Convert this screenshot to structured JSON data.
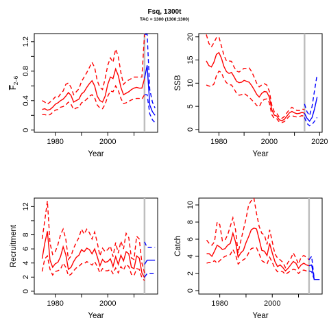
{
  "title": "Fsq, 1300t",
  "subtitle": "TAC = 1300 (1300;1300)",
  "colors": {
    "history": "#ff0000",
    "forecast": "#0000ff",
    "marker": "#bebebe",
    "axis": "#000000"
  },
  "chart_data": [
    {
      "type": "line",
      "id": "fbar",
      "ylabel": "F̄ 2–6",
      "ylabel_main": "F",
      "ylabel_sub": "2–6",
      "xlabel": "Year",
      "xlim": [
        1972,
        2019
      ],
      "ylim": [
        -0.03,
        1.31
      ],
      "xticks": [
        1980,
        2000
      ],
      "xticks_minor": [
        1990,
        2010
      ],
      "yticks": [
        0,
        0.4,
        0.8,
        1.2
      ],
      "yticks_minor": [
        0.2,
        0.6,
        1.0
      ],
      "marker_year": 2014,
      "history": {
        "x": [
          1975,
          1976,
          1977,
          1978,
          1979,
          1980,
          1981,
          1982,
          1983,
          1984,
          1985,
          1986,
          1987,
          1988,
          1989,
          1990,
          1991,
          1992,
          1993,
          1994,
          1995,
          1996,
          1997,
          1998,
          1999,
          2000,
          2001,
          2002,
          2003,
          2004,
          2005,
          2006,
          2007,
          2008,
          2009,
          2010,
          2011,
          2012,
          2013,
          2014
        ],
        "median": [
          0.28,
          0.29,
          0.27,
          0.28,
          0.31,
          0.35,
          0.37,
          0.4,
          0.42,
          0.46,
          0.51,
          0.47,
          0.38,
          0.4,
          0.42,
          0.49,
          0.52,
          0.58,
          0.63,
          0.67,
          0.6,
          0.46,
          0.4,
          0.38,
          0.46,
          0.62,
          0.72,
          0.7,
          0.83,
          0.74,
          0.58,
          0.48,
          0.5,
          0.52,
          0.55,
          0.57,
          0.58,
          0.57,
          0.57,
          0.7
        ],
        "upper": [
          0.4,
          0.38,
          0.35,
          0.38,
          0.41,
          0.45,
          0.44,
          0.49,
          0.53,
          0.62,
          0.64,
          0.58,
          0.48,
          0.52,
          0.56,
          0.66,
          0.72,
          0.78,
          0.85,
          0.92,
          0.85,
          0.67,
          0.58,
          0.55,
          0.7,
          0.88,
          0.98,
          0.92,
          1.1,
          1.0,
          0.78,
          0.62,
          0.66,
          0.68,
          0.7,
          0.72,
          0.72,
          0.72,
          0.72,
          1.3
        ],
        "lower": [
          0.21,
          0.21,
          0.2,
          0.21,
          0.24,
          0.27,
          0.28,
          0.31,
          0.32,
          0.34,
          0.38,
          0.35,
          0.28,
          0.3,
          0.31,
          0.37,
          0.39,
          0.42,
          0.46,
          0.48,
          0.44,
          0.34,
          0.3,
          0.29,
          0.35,
          0.46,
          0.53,
          0.52,
          0.6,
          0.54,
          0.43,
          0.36,
          0.37,
          0.39,
          0.41,
          0.42,
          0.43,
          0.43,
          0.42,
          0.48
        ]
      },
      "forecast": {
        "x": [
          2014,
          2015,
          2016,
          2017,
          2018
        ],
        "median": [
          0.7,
          0.88,
          0.34,
          0.25,
          0.2
        ],
        "upper": [
          1.3,
          1.3,
          0.55,
          0.38,
          0.3
        ],
        "lower": [
          0.48,
          0.48,
          0.22,
          0.14,
          0.1
        ]
      }
    },
    {
      "type": "line",
      "id": "ssb",
      "ylabel": "SSB",
      "xlabel": "Year",
      "xlim": [
        1972,
        2021
      ],
      "ylim": [
        -0.6,
        20.7
      ],
      "xticks": [
        1980,
        2000,
        2020
      ],
      "xticks_minor": [
        1990,
        2010
      ],
      "yticks": [
        0,
        5,
        10,
        15,
        20
      ],
      "yticks_minor": [],
      "marker_year": 2014,
      "history": {
        "x": [
          1975,
          1976,
          1977,
          1978,
          1979,
          1980,
          1981,
          1982,
          1983,
          1984,
          1985,
          1986,
          1987,
          1988,
          1989,
          1990,
          1991,
          1992,
          1993,
          1994,
          1995,
          1996,
          1997,
          1998,
          1999,
          2000,
          2001,
          2002,
          2003,
          2004,
          2005,
          2006,
          2007,
          2008,
          2009,
          2010,
          2011,
          2012,
          2013,
          2014
        ],
        "median": [
          14.8,
          13.8,
          13.5,
          14.5,
          16.2,
          16.6,
          15.4,
          13.6,
          12.5,
          12.1,
          12.3,
          11.4,
          10.4,
          10.1,
          10.2,
          10.6,
          10.4,
          10.2,
          9.5,
          8.6,
          7.6,
          7.0,
          7.8,
          8.2,
          8.1,
          7.0,
          4.3,
          3.1,
          2.9,
          2.1,
          1.9,
          2.2,
          2.9,
          3.6,
          3.9,
          3.6,
          3.4,
          3.5,
          3.7,
          3.5
        ],
        "upper": [
          20.5,
          18.6,
          17.8,
          18.7,
          19.8,
          20.0,
          18.0,
          16.0,
          14.8,
          14.8,
          14.7,
          13.5,
          12.6,
          12.4,
          12.8,
          13.2,
          13.2,
          13.3,
          12.5,
          11.3,
          10.0,
          9.2,
          9.6,
          9.9,
          9.6,
          8.3,
          5.3,
          3.8,
          3.5,
          2.6,
          2.4,
          2.8,
          3.6,
          4.3,
          4.8,
          4.4,
          4.1,
          4.1,
          4.4,
          4.3
        ],
        "lower": [
          9.6,
          9.4,
          9.3,
          9.8,
          11.6,
          12.6,
          12.3,
          10.9,
          10.1,
          9.7,
          9.6,
          8.8,
          7.8,
          7.4,
          7.5,
          7.8,
          7.4,
          7.0,
          6.4,
          5.9,
          5.2,
          4.9,
          6.0,
          6.5,
          6.6,
          5.8,
          3.2,
          2.4,
          2.3,
          1.6,
          1.5,
          1.7,
          2.3,
          2.9,
          3.0,
          2.8,
          2.7,
          2.8,
          3.0,
          2.8
        ]
      },
      "forecast": {
        "x": [
          2014,
          2015,
          2016,
          2017,
          2018,
          2019
        ],
        "median": [
          3.5,
          2.4,
          1.8,
          2.6,
          4.5,
          7.0
        ],
        "upper": [
          5.5,
          3.8,
          3.0,
          5.0,
          8.5,
          11.8
        ],
        "lower": [
          2.6,
          1.3,
          0.8,
          1.1,
          1.8,
          2.6
        ]
      }
    },
    {
      "type": "line",
      "id": "recruitment",
      "ylabel": "Recruitment",
      "xlabel": "Year",
      "xlim": [
        1972,
        2019
      ],
      "ylim": [
        -0.4,
        13.2
      ],
      "xticks": [
        1980,
        2000
      ],
      "xticks_minor": [
        1990,
        2010
      ],
      "yticks": [
        0,
        2,
        4,
        6,
        8,
        12
      ],
      "yticks_minor": [
        10
      ],
      "marker_year": 2014,
      "history": {
        "x": [
          1975,
          1976,
          1977,
          1978,
          1979,
          1980,
          1981,
          1982,
          1983,
          1984,
          1985,
          1986,
          1987,
          1988,
          1989,
          1990,
          1991,
          1992,
          1993,
          1994,
          1995,
          1996,
          1997,
          1998,
          1999,
          2000,
          2001,
          2002,
          2003,
          2004,
          2005,
          2006,
          2007,
          2008,
          2009,
          2010,
          2011,
          2012,
          2013,
          2014
        ],
        "median": [
          4.6,
          6.8,
          8.5,
          4.4,
          3.4,
          3.9,
          4.1,
          4.9,
          6.3,
          5.2,
          3.1,
          3.4,
          4.2,
          4.8,
          5.1,
          5.9,
          5.6,
          6.1,
          5.9,
          5.3,
          6.0,
          4.9,
          3.6,
          4.5,
          4.1,
          4.2,
          4.6,
          3.5,
          4.9,
          3.8,
          5.1,
          4.3,
          5.6,
          5.3,
          3.4,
          3.2,
          5.0,
          4.7,
          2.6,
          1.9
        ],
        "upper": [
          7.4,
          10.0,
          12.8,
          6.8,
          5.2,
          5.6,
          6.6,
          8.0,
          8.8,
          7.4,
          4.5,
          5.0,
          6.1,
          6.9,
          7.6,
          8.8,
          8.1,
          8.8,
          8.3,
          7.4,
          8.4,
          6.9,
          5.0,
          6.1,
          5.6,
          5.9,
          6.4,
          4.9,
          6.9,
          5.4,
          7.1,
          6.0,
          8.2,
          7.6,
          4.7,
          4.5,
          7.8,
          7.4,
          4.0,
          2.6
        ],
        "lower": [
          2.8,
          4.6,
          5.0,
          3.1,
          2.3,
          2.8,
          2.9,
          3.1,
          4.0,
          3.4,
          2.2,
          2.4,
          2.9,
          3.3,
          3.5,
          3.9,
          3.9,
          4.2,
          4.0,
          3.7,
          4.2,
          3.5,
          2.6,
          3.2,
          2.9,
          2.9,
          3.1,
          2.5,
          3.3,
          2.6,
          3.5,
          3.0,
          3.8,
          3.5,
          2.4,
          2.2,
          3.2,
          3.1,
          1.9,
          1.5
        ]
      },
      "forecast": {
        "x": [
          2014,
          2015,
          2016,
          2017,
          2018
        ],
        "median": [
          3.8,
          4.4,
          4.4,
          4.4,
          4.4
        ],
        "upper": [
          7.0,
          6.2,
          6.2,
          6.2,
          6.2
        ],
        "lower": [
          2.0,
          2.5,
          2.5,
          2.5,
          2.5
        ]
      }
    },
    {
      "type": "line",
      "id": "catch",
      "ylabel": "Catch",
      "xlabel": "Year",
      "xlim": [
        1972,
        2019
      ],
      "ylim": [
        -0.4,
        10.8
      ],
      "xticks": [
        1980,
        2000
      ],
      "xticks_minor": [
        1990,
        2010
      ],
      "yticks": [
        0,
        2,
        4,
        6,
        8,
        10
      ],
      "yticks_minor": [],
      "marker_year": 2014,
      "history": {
        "x": [
          1975,
          1976,
          1977,
          1978,
          1979,
          1980,
          1981,
          1982,
          1983,
          1984,
          1985,
          1986,
          1987,
          1988,
          1989,
          1990,
          1991,
          1992,
          1993,
          1994,
          1995,
          1996,
          1997,
          1998,
          1999,
          2000,
          2001,
          2002,
          2003,
          2004,
          2005,
          2006,
          2007,
          2008,
          2009,
          2010,
          2011,
          2012,
          2013,
          2014
        ],
        "median": [
          4.3,
          4.3,
          4.0,
          4.6,
          5.3,
          5.1,
          4.8,
          4.9,
          5.3,
          5.5,
          6.7,
          5.7,
          3.9,
          4.4,
          4.7,
          5.6,
          6.3,
          7.1,
          7.3,
          7.2,
          6.0,
          4.7,
          4.6,
          4.1,
          5.5,
          4.4,
          3.4,
          2.8,
          3.0,
          2.7,
          2.3,
          2.6,
          3.0,
          3.4,
          3.2,
          2.6,
          3.0,
          3.2,
          3.0,
          2.9
        ],
        "upper": [
          5.9,
          5.5,
          5.3,
          5.7,
          8.0,
          7.7,
          5.8,
          5.9,
          6.5,
          7.5,
          8.5,
          7.1,
          4.4,
          5.8,
          7.1,
          8.4,
          10.0,
          10.5,
          10.8,
          9.0,
          7.5,
          6.7,
          6.5,
          5.4,
          7.1,
          5.7,
          4.3,
          3.8,
          3.6,
          3.3,
          2.7,
          3.3,
          3.7,
          4.4,
          3.8,
          3.1,
          3.9,
          4.1,
          3.9,
          3.6
        ],
        "lower": [
          3.2,
          3.3,
          3.3,
          3.5,
          3.2,
          3.5,
          3.8,
          4.0,
          4.1,
          4.2,
          4.8,
          4.2,
          3.1,
          3.4,
          3.6,
          3.8,
          4.4,
          4.9,
          5.0,
          5.0,
          4.3,
          3.5,
          3.3,
          3.1,
          3.9,
          3.3,
          2.6,
          2.2,
          2.3,
          2.2,
          1.9,
          2.1,
          2.3,
          2.5,
          2.4,
          2.0,
          2.3,
          2.4,
          2.3,
          2.3
        ]
      },
      "forecast": {
        "x": [
          2014,
          2015,
          2016,
          2017,
          2018
        ],
        "median": [
          2.9,
          3.0,
          1.3,
          1.3,
          1.3
        ],
        "upper": [
          3.6,
          4.0,
          1.3,
          1.3,
          1.3
        ],
        "lower": [
          2.3,
          2.2,
          1.3,
          1.3,
          1.3
        ]
      }
    }
  ]
}
